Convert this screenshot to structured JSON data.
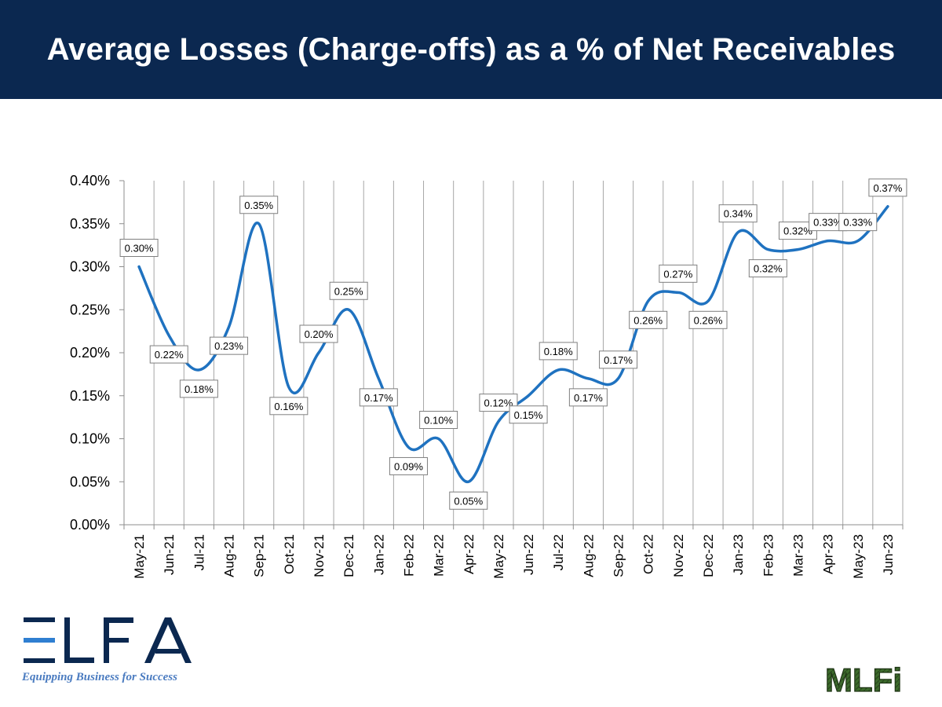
{
  "header": {
    "title": "Average Losses (Charge-offs) as a % of Net Receivables"
  },
  "logos": {
    "left": {
      "name": "ELFA",
      "tagline": "Equipping Business for Success"
    },
    "right": {
      "name": "MLFI"
    }
  },
  "colors": {
    "header_bg": "#0b2850",
    "line": "#1f72c0",
    "grid": "#a6a6a6",
    "axis": "#8c8c8c",
    "elfa_blue": "#0b2850",
    "elfa_accent": "#2f7fd1",
    "mlfi_green": "#3d6b2c"
  },
  "chart_data": {
    "type": "line",
    "title": "Average Losses (Charge-offs) as a % of Net Receivables",
    "xlabel": "",
    "ylabel": "",
    "ylim": [
      0,
      0.4
    ],
    "yticks": [
      "0.00%",
      "0.05%",
      "0.10%",
      "0.15%",
      "0.20%",
      "0.25%",
      "0.30%",
      "0.35%",
      "0.40%"
    ],
    "grid": "vertical",
    "categories": [
      "May-21",
      "Jun-21",
      "Jul-21",
      "Aug-21",
      "Sep-21",
      "Oct-21",
      "Nov-21",
      "Dec-21",
      "Jan-22",
      "Feb-22",
      "Mar-22",
      "Apr-22",
      "May-22",
      "Jun-22",
      "Jul-22",
      "Aug-22",
      "Sep-22",
      "Oct-22",
      "Nov-22",
      "Dec-22",
      "Jan-23",
      "Feb-23",
      "Mar-23",
      "Apr-23",
      "May-23",
      "Jun-23"
    ],
    "series": [
      {
        "name": "Average Losses",
        "values": [
          0.3,
          0.22,
          0.18,
          0.23,
          0.35,
          0.16,
          0.2,
          0.25,
          0.17,
          0.09,
          0.1,
          0.05,
          0.12,
          0.15,
          0.18,
          0.17,
          0.17,
          0.26,
          0.27,
          0.26,
          0.34,
          0.32,
          0.32,
          0.33,
          0.33,
          0.37
        ],
        "labels": [
          "0.30%",
          "0.22%",
          "0.18%",
          "0.23%",
          "0.35%",
          "0.16%",
          "0.20%",
          "0.25%",
          "0.17%",
          "0.09%",
          "0.10%",
          "0.05%",
          "0.12%",
          "0.15%",
          "0.18%",
          "0.17%",
          "0.17%",
          "0.26%",
          "0.27%",
          "0.26%",
          "0.34%",
          "0.32%",
          "0.32%",
          "0.33%",
          "0.33%",
          "0.37%"
        ]
      }
    ]
  }
}
